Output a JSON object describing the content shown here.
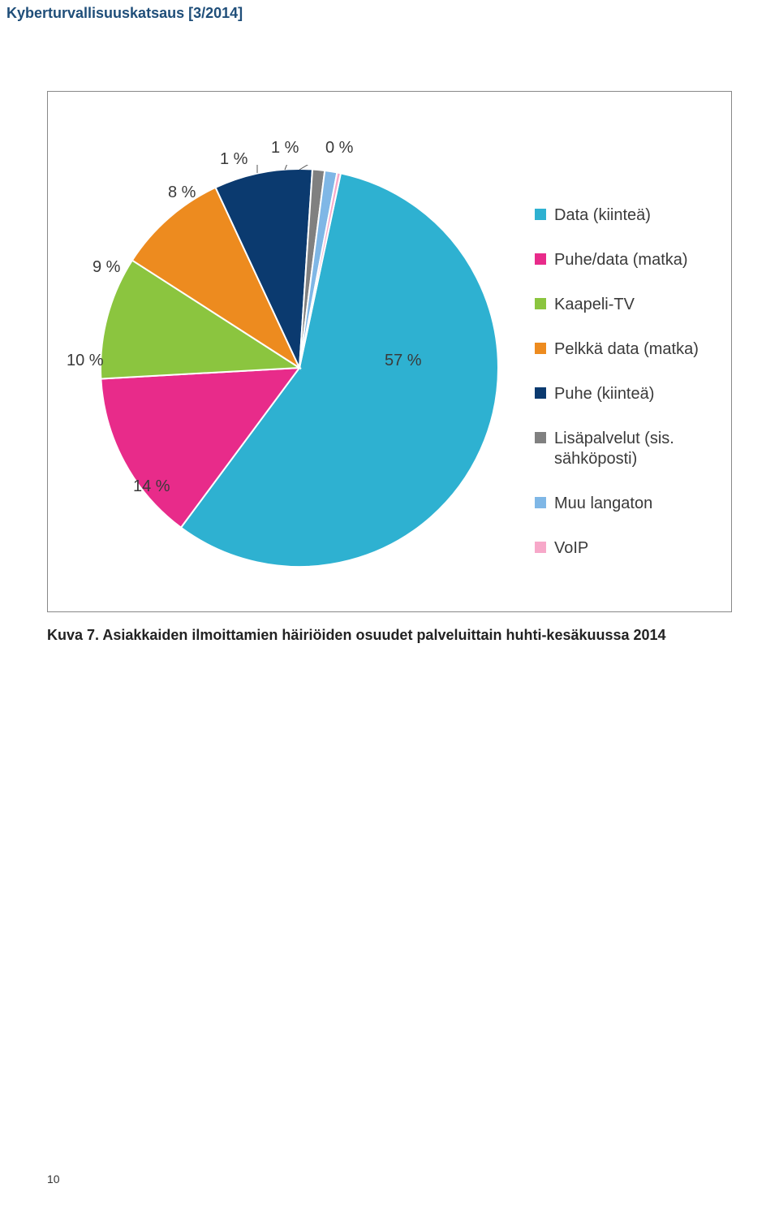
{
  "header": {
    "title": "Kyberturvallisuuskatsaus [3/2014]"
  },
  "chart": {
    "type": "pie",
    "center_label": "57 %",
    "background_color": "#ffffff",
    "border_color": "#888888",
    "label_fontsize": 20,
    "label_color": "#3a3a3a",
    "legend_fontsize": 20,
    "slices": [
      {
        "label": "Data (kiinteä)",
        "value": 57,
        "percent_label": "57 %",
        "color": "#2eb1d1"
      },
      {
        "label": "Puhe/data (matka)",
        "value": 14,
        "percent_label": "14 %",
        "color": "#e82b8a"
      },
      {
        "label": "Kaapeli-TV",
        "value": 10,
        "percent_label": "10 %",
        "color": "#8bc53f"
      },
      {
        "label": "Pelkkä data (matka)",
        "value": 9,
        "percent_label": "9 %",
        "color": "#ed8b1f"
      },
      {
        "label": "Puhe (kiinteä)",
        "value": 8,
        "percent_label": "8 %",
        "color": "#0b3a6f"
      },
      {
        "label": "Lisäpalvelut (sis. sähköposti)",
        "value": 1,
        "percent_label": "1 %",
        "color": "#808080"
      },
      {
        "label": "Muu langaton",
        "value": 1,
        "percent_label": "1 %",
        "color": "#7fb7e6"
      },
      {
        "label": "VoIP",
        "value": 0.3,
        "percent_label": "0 %",
        "color": "#f7a8c9"
      }
    ]
  },
  "caption": "Kuva 7. Asiakkaiden ilmoittamien häiriöiden osuudet palveluittain huhti-kesäkuussa 2014",
  "page_number": "10"
}
